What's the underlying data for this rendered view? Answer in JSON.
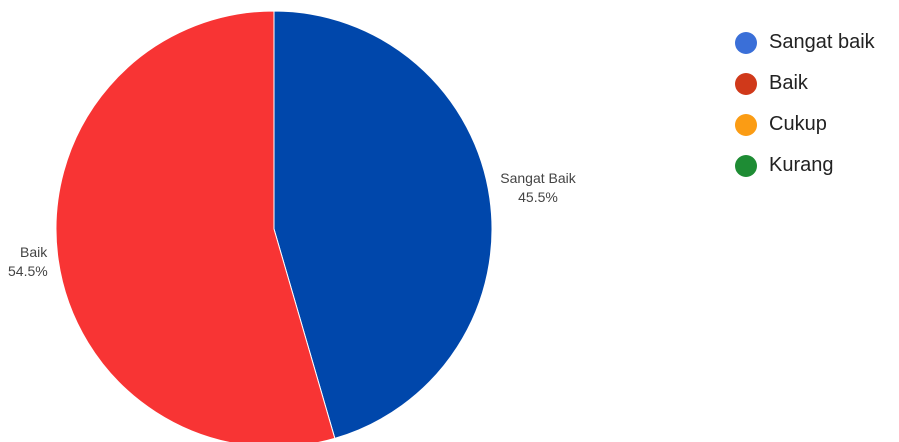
{
  "chart_data": {
    "type": "pie",
    "slices": [
      {
        "label": "Sangat Baik",
        "value": 45.5,
        "percent_label": "45.5%",
        "color": "#0047ab"
      },
      {
        "label": "Baik",
        "value": 54.5,
        "percent_label": "54.5%",
        "color": "#f83434"
      }
    ],
    "start_angle_deg": 0,
    "direction": "clockwise",
    "legend": {
      "placement": "top-right",
      "entries": [
        {
          "label": "Sangat baik",
          "color": "#3a6fd8"
        },
        {
          "label": "Baik",
          "color": "#d0391a"
        },
        {
          "label": "Cukup",
          "color": "#fb9c14"
        },
        {
          "label": "Kurang",
          "color": "#1e8c34"
        }
      ]
    }
  }
}
